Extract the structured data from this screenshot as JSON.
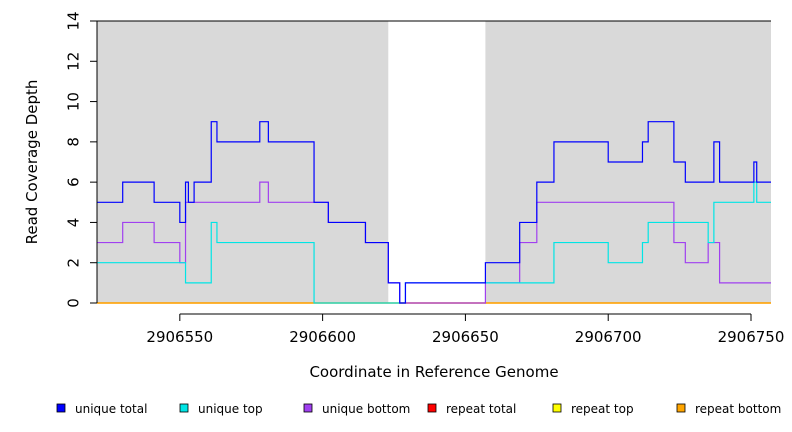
{
  "chart_data": {
    "type": "line",
    "title": "",
    "xlabel": "Coordinate in Reference Genome",
    "ylabel": "Read Coverage Depth",
    "xlim": [
      2906521,
      2906757
    ],
    "ylim": [
      0,
      14
    ],
    "x_ticks": [
      2906550,
      2906600,
      2906650,
      2906700,
      2906750
    ],
    "y_ticks": [
      0,
      2,
      4,
      6,
      8,
      10,
      12,
      14
    ],
    "shaded_regions": [
      {
        "start": 2906521,
        "end": 2906623,
        "color": "#d9d9d9"
      },
      {
        "start": 2906657,
        "end": 2906757,
        "color": "#d9d9d9"
      }
    ],
    "legend_position": "bottom",
    "series": [
      {
        "name": "unique total",
        "color": "#0000ff",
        "points": [
          [
            2906521,
            5
          ],
          [
            2906530,
            5
          ],
          [
            2906530,
            6
          ],
          [
            2906541,
            6
          ],
          [
            2906541,
            5
          ],
          [
            2906550,
            5
          ],
          [
            2906550,
            4
          ],
          [
            2906552,
            4
          ],
          [
            2906552,
            6
          ],
          [
            2906553,
            6
          ],
          [
            2906553,
            5
          ],
          [
            2906555,
            5
          ],
          [
            2906555,
            6
          ],
          [
            2906561,
            6
          ],
          [
            2906561,
            9
          ],
          [
            2906563,
            9
          ],
          [
            2906563,
            8
          ],
          [
            2906578,
            8
          ],
          [
            2906578,
            9
          ],
          [
            2906581,
            9
          ],
          [
            2906581,
            8
          ],
          [
            2906597,
            8
          ],
          [
            2906597,
            5
          ],
          [
            2906602,
            5
          ],
          [
            2906602,
            4
          ],
          [
            2906615,
            4
          ],
          [
            2906615,
            3
          ],
          [
            2906623,
            3
          ],
          [
            2906623,
            1
          ],
          [
            2906627,
            1
          ],
          [
            2906627,
            0
          ],
          [
            2906629,
            0
          ],
          [
            2906629,
            1
          ],
          [
            2906657,
            1
          ],
          [
            2906657,
            2
          ],
          [
            2906669,
            2
          ],
          [
            2906669,
            4
          ],
          [
            2906675,
            4
          ],
          [
            2906675,
            6
          ],
          [
            2906681,
            6
          ],
          [
            2906681,
            8
          ],
          [
            2906700,
            8
          ],
          [
            2906700,
            7
          ],
          [
            2906712,
            7
          ],
          [
            2906712,
            8
          ],
          [
            2906714,
            8
          ],
          [
            2906714,
            9
          ],
          [
            2906723,
            9
          ],
          [
            2906723,
            7
          ],
          [
            2906727,
            7
          ],
          [
            2906727,
            6
          ],
          [
            2906737,
            6
          ],
          [
            2906737,
            8
          ],
          [
            2906739,
            8
          ],
          [
            2906739,
            6
          ],
          [
            2906751,
            6
          ],
          [
            2906751,
            7
          ],
          [
            2906752,
            7
          ],
          [
            2906752,
            6
          ],
          [
            2906757,
            6
          ]
        ]
      },
      {
        "name": "unique top",
        "color": "#00e5e5",
        "points": [
          [
            2906521,
            2
          ],
          [
            2906552,
            2
          ],
          [
            2906552,
            1
          ],
          [
            2906561,
            1
          ],
          [
            2906561,
            4
          ],
          [
            2906563,
            4
          ],
          [
            2906563,
            3
          ],
          [
            2906597,
            3
          ],
          [
            2906597,
            0
          ],
          [
            2906623,
            0
          ],
          [
            2906623,
            0
          ],
          [
            2906629,
            0
          ],
          [
            2906629,
            1
          ],
          [
            2906657,
            1
          ],
          [
            2906657,
            1
          ],
          [
            2906669,
            1
          ],
          [
            2906669,
            1
          ],
          [
            2906681,
            1
          ],
          [
            2906681,
            3
          ],
          [
            2906700,
            3
          ],
          [
            2906700,
            2
          ],
          [
            2906712,
            2
          ],
          [
            2906712,
            3
          ],
          [
            2906714,
            3
          ],
          [
            2906714,
            4
          ],
          [
            2906735,
            4
          ],
          [
            2906735,
            3
          ],
          [
            2906737,
            3
          ],
          [
            2906737,
            5
          ],
          [
            2906751,
            5
          ],
          [
            2906751,
            6
          ],
          [
            2906752,
            6
          ],
          [
            2906752,
            5
          ],
          [
            2906757,
            5
          ]
        ]
      },
      {
        "name": "unique bottom",
        "color": "#a040f0",
        "points": [
          [
            2906521,
            3
          ],
          [
            2906530,
            3
          ],
          [
            2906530,
            4
          ],
          [
            2906541,
            4
          ],
          [
            2906541,
            3
          ],
          [
            2906550,
            3
          ],
          [
            2906550,
            2
          ],
          [
            2906552,
            2
          ],
          [
            2906552,
            5
          ],
          [
            2906578,
            5
          ],
          [
            2906578,
            6
          ],
          [
            2906581,
            6
          ],
          [
            2906581,
            5
          ],
          [
            2906597,
            5
          ],
          [
            2906597,
            5
          ],
          [
            2906602,
            5
          ],
          [
            2906602,
            4
          ],
          [
            2906615,
            4
          ],
          [
            2906615,
            3
          ],
          [
            2906623,
            3
          ],
          [
            2906623,
            1
          ],
          [
            2906627,
            1
          ],
          [
            2906627,
            0
          ],
          [
            2906657,
            0
          ],
          [
            2906657,
            1
          ],
          [
            2906669,
            1
          ],
          [
            2906669,
            3
          ],
          [
            2906675,
            3
          ],
          [
            2906675,
            5
          ],
          [
            2906723,
            5
          ],
          [
            2906723,
            3
          ],
          [
            2906727,
            3
          ],
          [
            2906727,
            2
          ],
          [
            2906735,
            2
          ],
          [
            2906735,
            3
          ],
          [
            2906739,
            3
          ],
          [
            2906739,
            1
          ],
          [
            2906757,
            1
          ]
        ]
      },
      {
        "name": "repeat total",
        "color": "#ff0000",
        "points": [
          [
            2906521,
            0
          ],
          [
            2906757,
            0
          ]
        ]
      },
      {
        "name": "repeat top",
        "color": "#ffff00",
        "points": [
          [
            2906521,
            0
          ],
          [
            2906757,
            0
          ]
        ]
      },
      {
        "name": "repeat bottom",
        "color": "#ffa500",
        "points": [
          [
            2906521,
            0
          ],
          [
            2906757,
            0
          ]
        ]
      }
    ]
  }
}
